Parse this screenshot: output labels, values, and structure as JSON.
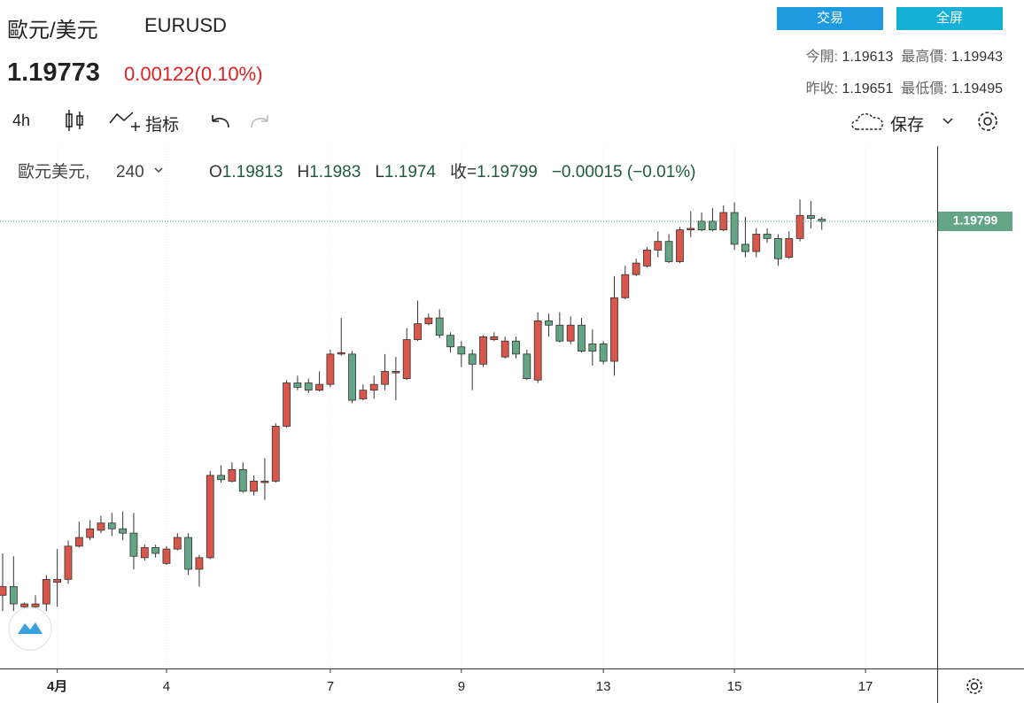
{
  "header": {
    "name": "歐元/美元",
    "symbol": "EURUSD",
    "price": "1.19773",
    "change": "0.00122(0.10%)",
    "buttons": [
      "交易",
      "全屏"
    ],
    "stats": [
      [
        "今開:",
        "1.19613",
        "最高價:",
        "1.19943"
      ],
      [
        "昨收:",
        "1.19651",
        "最低價:",
        "1.19495"
      ]
    ]
  },
  "toolbar": {
    "interval": "4h",
    "indicators": "指标",
    "save": "保存"
  },
  "chart_data": {
    "type": "candlestick",
    "legend": {
      "name": "歐元美元,",
      "interval": "240",
      "labels": [
        "O",
        "H",
        "L",
        "收="
      ],
      "change": "−0.00015 (−0.01%)"
    },
    "open": [
      1.1721,
      1.1727,
      1.1713,
      1.1713,
      1.1715,
      1.173,
      1.1732,
      1.1755,
      1.1761,
      1.1766,
      1.1771,
      1.1767,
      1.1764,
      1.1747,
      1.1754,
      1.1743,
      1.1753,
      1.1761,
      1.1739,
      1.1747,
      1.1804,
      1.18,
      1.1808,
      1.1793,
      1.1799,
      1.18,
      1.1838,
      1.1868,
      1.1868,
      1.1863,
      1.1867,
      1.1888,
      1.1888,
      1.1857,
      1.1863,
      1.1867,
      1.1875,
      1.1871,
      1.1898,
      1.1909,
      1.1913,
      1.1901,
      1.1893,
      1.1888,
      1.1881,
      1.1898,
      1.1886,
      1.1897,
      1.1888,
      1.187,
      1.1911,
      1.1908,
      1.1897,
      1.1908,
      1.1895,
      1.1895,
      1.1883,
      1.1927,
      1.1943,
      1.1949,
      1.196,
      1.1966,
      1.1952,
      1.1974,
      1.198,
      1.198,
      1.1974,
      1.1986,
      1.1964,
      1.1959,
      1.1971,
      1.1968,
      1.1955,
      1.1968,
      1.1984,
      1.19813
    ],
    "high": [
      1.175,
      1.1748,
      1.1716,
      1.1721,
      1.1735,
      1.1753,
      1.1759,
      1.1772,
      1.1773,
      1.1776,
      1.1778,
      1.1779,
      1.1778,
      1.1756,
      1.1756,
      1.1755,
      1.1764,
      1.1764,
      1.1749,
      1.1807,
      1.1811,
      1.1813,
      1.1813,
      1.1804,
      1.1816,
      1.184,
      1.187,
      1.1873,
      1.1871,
      1.1876,
      1.1891,
      1.1913,
      1.189,
      1.1867,
      1.1873,
      1.1888,
      1.1886,
      1.1906,
      1.1925,
      1.1916,
      1.1919,
      1.1903,
      1.1897,
      1.1891,
      1.1901,
      1.1903,
      1.19,
      1.19,
      1.1891,
      1.1917,
      1.1916,
      1.1917,
      1.1914,
      1.1913,
      1.1905,
      1.1897,
      1.1942,
      1.1949,
      1.1954,
      1.1962,
      1.1973,
      1.1971,
      1.1976,
      1.1987,
      1.1986,
      1.1989,
      1.1991,
      1.1993,
      1.1983,
      1.1975,
      1.1975,
      1.1971,
      1.1973,
      1.1995,
      1.1994,
      1.1983
    ],
    "low": [
      1.171,
      1.171,
      1.1711,
      1.171,
      1.171,
      1.1713,
      1.1729,
      1.1754,
      1.1759,
      1.1764,
      1.1762,
      1.1759,
      1.1739,
      1.1745,
      1.1747,
      1.1742,
      1.1752,
      1.1735,
      1.1727,
      1.1746,
      1.1799,
      1.1799,
      1.1792,
      1.179,
      1.1787,
      1.1799,
      1.1837,
      1.1863,
      1.1861,
      1.1862,
      1.1865,
      1.1887,
      1.1854,
      1.1856,
      1.1857,
      1.1863,
      1.1856,
      1.187,
      1.1897,
      1.1908,
      1.1899,
      1.1889,
      1.1879,
      1.1863,
      1.1879,
      1.1897,
      1.1885,
      1.1885,
      1.187,
      1.1868,
      1.19,
      1.1896,
      1.1895,
      1.1889,
      1.188,
      1.1881,
      1.1873,
      1.1926,
      1.1942,
      1.1948,
      1.1955,
      1.1951,
      1.1951,
      1.1969,
      1.1973,
      1.1973,
      1.1973,
      1.196,
      1.1955,
      1.1955,
      1.1965,
      1.1949,
      1.1954,
      1.1966,
      1.1975,
      1.1974
    ],
    "close": [
      1.1727,
      1.1715,
      1.1715,
      1.1715,
      1.1732,
      1.1732,
      1.1755,
      1.1761,
      1.1767,
      1.1771,
      1.1767,
      1.1764,
      1.1748,
      1.1754,
      1.175,
      1.1753,
      1.1761,
      1.1739,
      1.1747,
      1.1804,
      1.1801,
      1.1808,
      1.1793,
      1.18,
      1.18,
      1.1838,
      1.1868,
      1.1865,
      1.1863,
      1.1867,
      1.1888,
      1.1889,
      1.1856,
      1.1863,
      1.1867,
      1.1876,
      1.1876,
      1.1898,
      1.1909,
      1.1913,
      1.1901,
      1.1893,
      1.1888,
      1.1881,
      1.19,
      1.19,
      1.1897,
      1.1888,
      1.1871,
      1.1911,
      1.1908,
      1.1897,
      1.1908,
      1.189,
      1.189,
      1.1883,
      1.1927,
      1.1943,
      1.1951,
      1.196,
      1.1966,
      1.1952,
      1.1974,
      1.1975,
      1.1974,
      1.1974,
      1.1986,
      1.1964,
      1.1959,
      1.1971,
      1.1968,
      1.1954,
      1.1968,
      1.1984,
      1.1982,
      1.19799
    ],
    "up_color": "#d9574a",
    "down_color": "#63a585",
    "ylim": [
      1.16703,
      1.2032
    ],
    "xticks": [
      {
        "value": 5,
        "label": "4月"
      },
      {
        "value": 15,
        "label": "4"
      },
      {
        "value": 30,
        "label": "7"
      },
      {
        "value": 42,
        "label": "9"
      },
      {
        "value": 55,
        "label": "13"
      },
      {
        "value": 67,
        "label": "15"
      },
      {
        "value": 79,
        "label": "17"
      }
    ],
    "grid": true
  }
}
